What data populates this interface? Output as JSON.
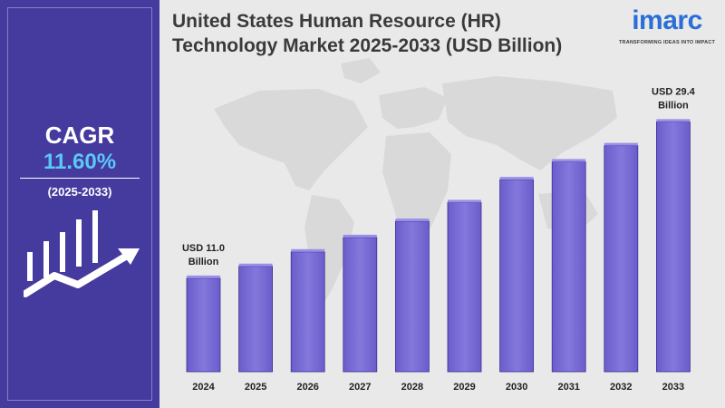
{
  "cagr": {
    "label": "CAGR",
    "value": "11.60%",
    "period": "(2025-2033)"
  },
  "header": {
    "title_line1": "United States Human Resource (HR)",
    "title_line2": "Technology Market 2025-2033 (USD Billion)"
  },
  "logo": {
    "word": "imarc",
    "tagline": "TRANSFORMING IDEAS INTO IMPACT"
  },
  "colors": {
    "panel": "#453a9e",
    "accent": "#5bc8f5",
    "bar": "#7d70d8",
    "bar_top": "#9a8fe8",
    "logo": "#2a6fd6"
  },
  "chart_data": {
    "type": "bar",
    "title": "United States Human Resource (HR) Technology Market 2025-2033 (USD Billion)",
    "categories": [
      "2024",
      "2025",
      "2026",
      "2027",
      "2028",
      "2029",
      "2030",
      "2031",
      "2032",
      "2033"
    ],
    "values": [
      11.0,
      12.4,
      14.1,
      15.8,
      17.7,
      19.9,
      22.6,
      24.7,
      26.6,
      29.4
    ],
    "ylim": [
      0,
      32
    ],
    "grid": false,
    "annotations": [
      {
        "index": 0,
        "line1": "USD 11.0",
        "line2": "Billion"
      },
      {
        "index": 9,
        "line1": "USD 29.4",
        "line2": "Billion"
      }
    ]
  }
}
